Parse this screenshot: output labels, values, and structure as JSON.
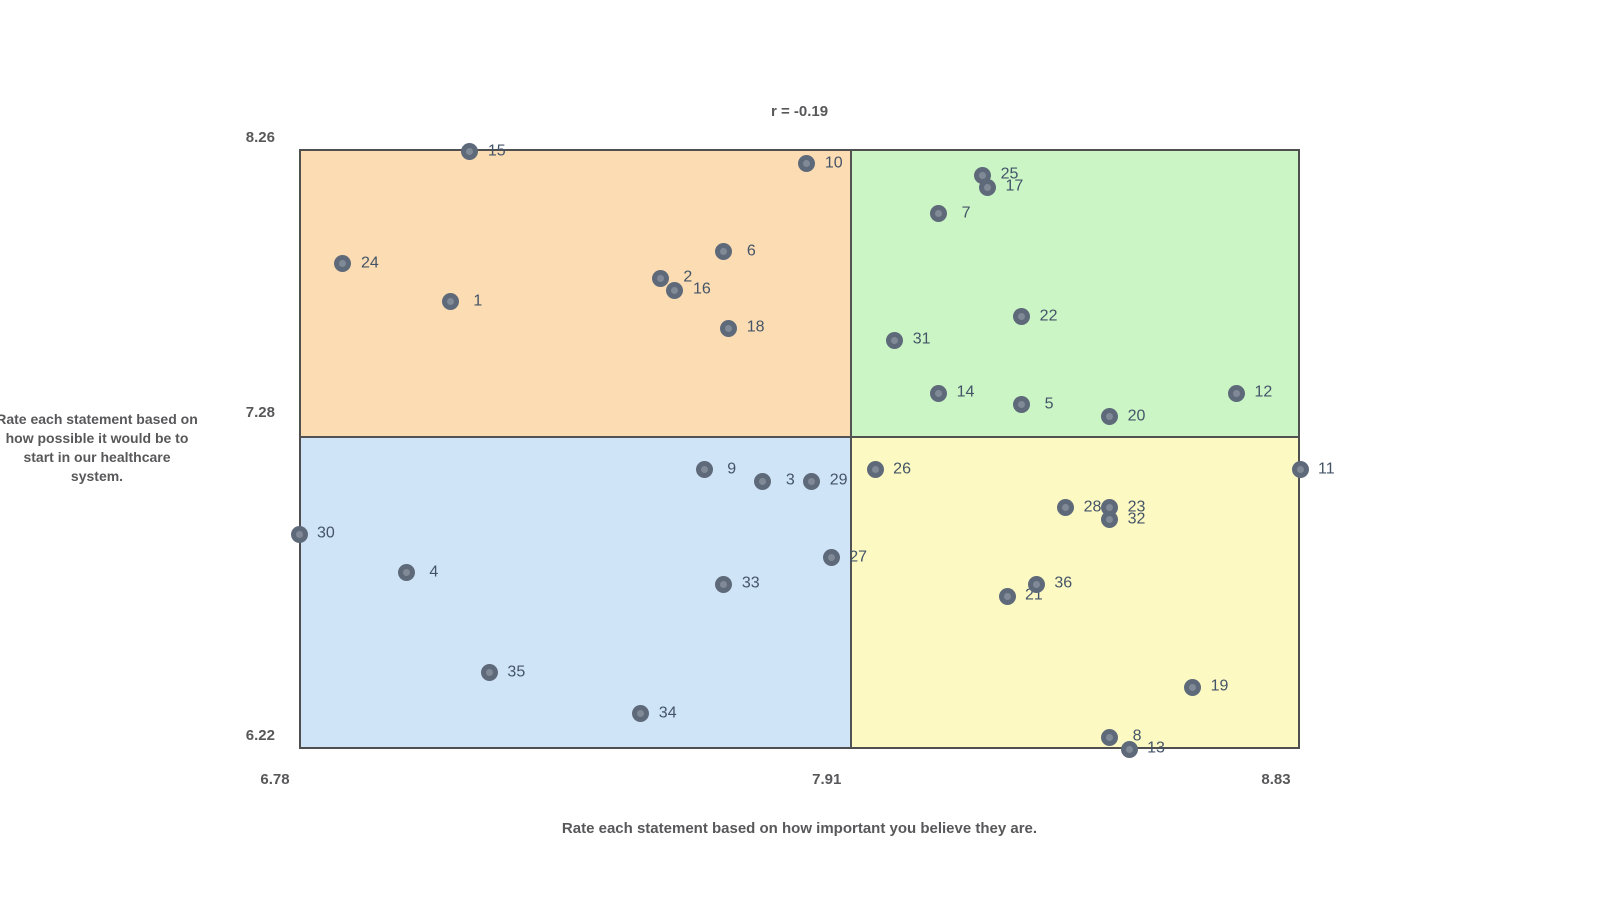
{
  "title": {
    "text": "r = -0.19"
  },
  "x_axis": {
    "label": "Rate each statement based on how important you believe they are.",
    "tick_labels": [
      "6.78",
      "7.91",
      "8.83"
    ],
    "tick_values": [
      6.78,
      7.91,
      8.83
    ],
    "min": 6.78,
    "mid": 7.91,
    "max": 8.83
  },
  "y_axis": {
    "label_lines": [
      "Rate each statement based on",
      "how possible it would be to",
      "start in our healthcare",
      "system."
    ],
    "tick_labels": [
      "8.26",
      "7.28",
      "6.22"
    ],
    "tick_values": [
      8.26,
      7.28,
      6.22
    ],
    "min": 6.22,
    "mid": 7.28,
    "max": 8.26
  },
  "colors": {
    "quadrant_top_left": "#fcdcb2",
    "quadrant_top_right": "#cbf5c5",
    "quadrant_bottom_left": "#d0e4f7",
    "quadrant_bottom_right": "#fdf9c2",
    "border": "#525252",
    "marker_outer": "#5e6a7a",
    "marker_inner": "#808a96",
    "point_label": "#445468",
    "axis_text": "#58585a"
  },
  "chart_data": {
    "type": "scatter",
    "title": "r = -0.19",
    "xlabel": "Rate each statement based on how important you believe they are.",
    "ylabel": "Rate each statement based on how possible it would be to start in our healthcare system.",
    "xlim": [
      6.78,
      8.83
    ],
    "ylim": [
      6.22,
      8.26
    ],
    "x_divider": 7.91,
    "y_divider": 7.28,
    "legend": "none",
    "grid": false,
    "points": [
      {
        "id": 1,
        "x": 7.09,
        "y": 7.74
      },
      {
        "id": 2,
        "x": 7.52,
        "y": 7.82
      },
      {
        "id": 3,
        "x": 7.73,
        "y": 7.13
      },
      {
        "id": 4,
        "x": 7.0,
        "y": 6.82
      },
      {
        "id": 5,
        "x": 8.26,
        "y": 7.39
      },
      {
        "id": 6,
        "x": 7.65,
        "y": 7.91
      },
      {
        "id": 7,
        "x": 8.09,
        "y": 8.04
      },
      {
        "id": 8,
        "x": 8.44,
        "y": 6.26
      },
      {
        "id": 9,
        "x": 7.61,
        "y": 7.17
      },
      {
        "id": 10,
        "x": 7.82,
        "y": 8.21
      },
      {
        "id": 11,
        "x": 8.83,
        "y": 7.17
      },
      {
        "id": 12,
        "x": 8.7,
        "y": 7.43
      },
      {
        "id": 13,
        "x": 8.48,
        "y": 6.22
      },
      {
        "id": 14,
        "x": 8.09,
        "y": 7.43
      },
      {
        "id": 15,
        "x": 7.13,
        "y": 8.25
      },
      {
        "id": 16,
        "x": 7.55,
        "y": 7.78
      },
      {
        "id": 17,
        "x": 8.19,
        "y": 8.13
      },
      {
        "id": 18,
        "x": 7.66,
        "y": 7.65
      },
      {
        "id": 19,
        "x": 8.61,
        "y": 6.43
      },
      {
        "id": 20,
        "x": 8.44,
        "y": 7.35
      },
      {
        "id": 21,
        "x": 8.23,
        "y": 6.74
      },
      {
        "id": 22,
        "x": 8.26,
        "y": 7.69
      },
      {
        "id": 23,
        "x": 8.44,
        "y": 7.04
      },
      {
        "id": 24,
        "x": 6.87,
        "y": 7.87
      },
      {
        "id": 25,
        "x": 8.18,
        "y": 8.17
      },
      {
        "id": 26,
        "x": 7.96,
        "y": 7.17
      },
      {
        "id": 27,
        "x": 7.87,
        "y": 6.87
      },
      {
        "id": 28,
        "x": 8.35,
        "y": 7.04
      },
      {
        "id": 29,
        "x": 7.83,
        "y": 7.13
      },
      {
        "id": 30,
        "x": 6.78,
        "y": 6.95
      },
      {
        "id": 31,
        "x": 8.0,
        "y": 7.61
      },
      {
        "id": 32,
        "x": 8.44,
        "y": 7.0
      },
      {
        "id": 33,
        "x": 7.65,
        "y": 6.78
      },
      {
        "id": 34,
        "x": 7.48,
        "y": 6.34
      },
      {
        "id": 35,
        "x": 7.17,
        "y": 6.48
      },
      {
        "id": 36,
        "x": 8.29,
        "y": 6.78
      }
    ]
  }
}
